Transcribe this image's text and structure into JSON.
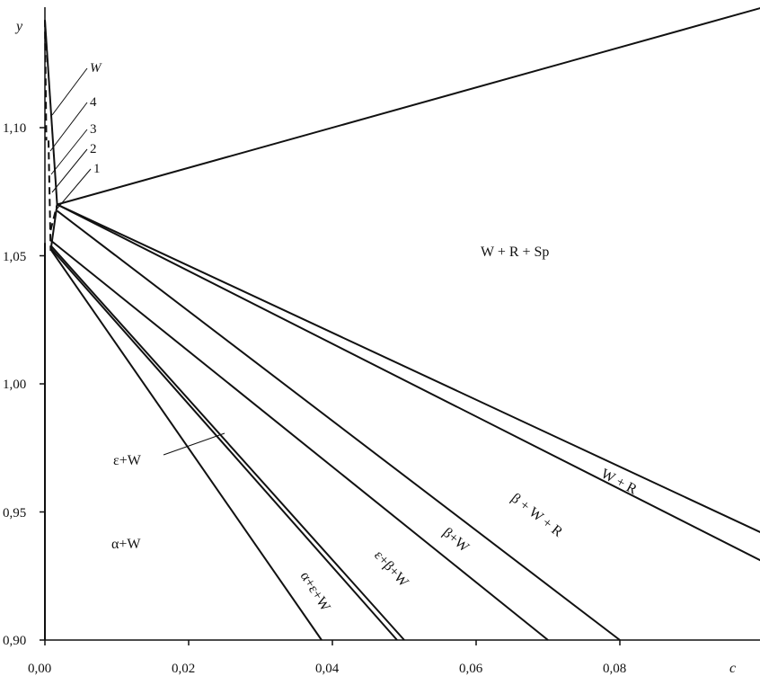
{
  "axes": {
    "x_name": "c",
    "y_name": "y",
    "x_ticks": [
      "0,00",
      "0,02",
      "0,04",
      "0,06",
      "0,08"
    ],
    "y_ticks": [
      "0,90",
      "0,95",
      "1,00",
      "1,05",
      "1,10"
    ],
    "xlim": [
      0,
      0.1
    ],
    "ylim": [
      0.9,
      1.15
    ]
  },
  "regions": {
    "w_r_sp": "W + R + Sp",
    "w_r": "W + R",
    "beta_w_r": "β + W + R",
    "beta_w": "β+W",
    "eps_beta_w": "ε+β+W",
    "alpha_eps_w": "α+ε+W",
    "eps_w": "ε+W",
    "alpha_w": "α+W"
  },
  "callouts": [
    "W",
    "4",
    "3",
    "2",
    "1"
  ],
  "boundary_lines": [
    {
      "from": [
        0.0,
        1.142
      ],
      "to": [
        0.0017,
        1.07
      ]
    },
    {
      "from": [
        0.0017,
        1.07
      ],
      "to": [
        0.1,
        1.147
      ]
    },
    {
      "from": [
        0.0017,
        1.07
      ],
      "to": [
        0.1,
        0.9415
      ]
    },
    {
      "from": [
        0.0017,
        1.07
      ],
      "to": [
        0.1,
        0.9305
      ]
    },
    {
      "from": [
        0.0017,
        1.07
      ],
      "to": [
        0.0008,
        1.052
      ]
    },
    {
      "from": [
        0.0017,
        1.0675
      ],
      "to": [
        0.08,
        0.9
      ]
    },
    {
      "from": [
        0.0008,
        1.056
      ],
      "to": [
        0.07,
        0.9
      ]
    },
    {
      "from": [
        0.0008,
        1.054
      ],
      "to": [
        0.05,
        0.9
      ]
    },
    {
      "from": [
        0.0008,
        1.053
      ],
      "to": [
        0.049,
        0.9
      ]
    },
    {
      "from": [
        0.0008,
        1.0525
      ],
      "to": [
        0.0385,
        0.9
      ]
    },
    {
      "from": [
        0.0,
        1.055
      ],
      "to": [
        0.0,
        0.9
      ]
    }
  ],
  "dashed_lines": [
    {
      "from": [
        0.0,
        1.142
      ],
      "to": [
        0.0002,
        1.095
      ]
    },
    {
      "from": [
        0.0005,
        1.095
      ],
      "to": [
        0.0008,
        1.052
      ]
    },
    {
      "from": [
        0.0008,
        1.06
      ],
      "to": [
        0.0017,
        1.07
      ]
    }
  ]
}
